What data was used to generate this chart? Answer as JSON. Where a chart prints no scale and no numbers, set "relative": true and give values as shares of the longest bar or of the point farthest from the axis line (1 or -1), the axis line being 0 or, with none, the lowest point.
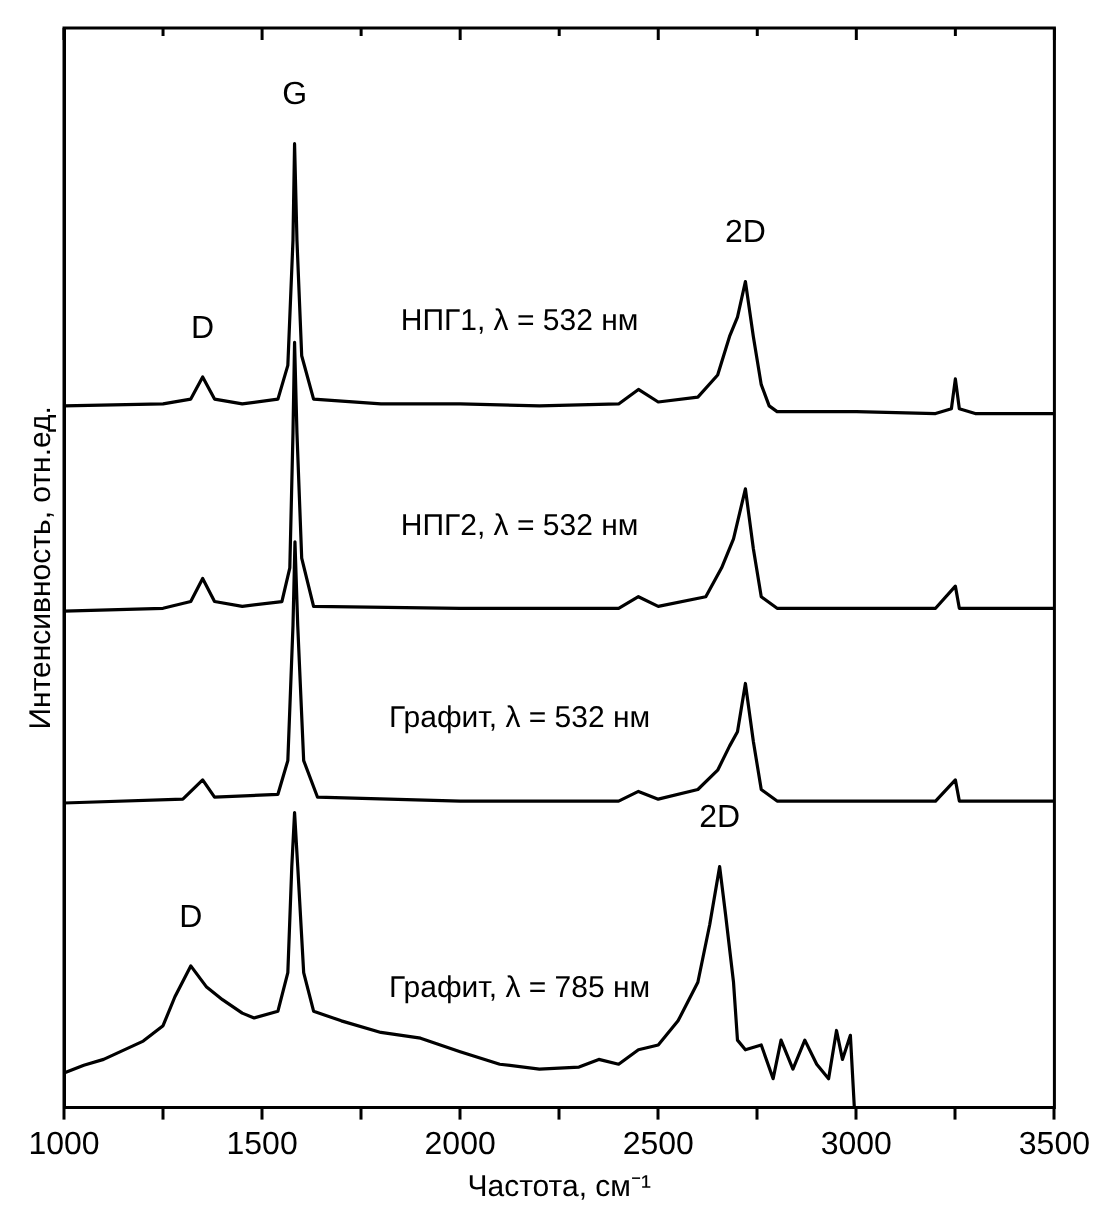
{
  "chart_data": {
    "type": "line",
    "relative": true,
    "xlabel": "Частота, см⁻¹",
    "ylabel": "Интенсивность, отн.ед.",
    "xlim": [
      1000,
      3500
    ],
    "xticks": [
      1000,
      {
        "value": 1250,
        "label": null
      },
      1500,
      {
        "value": 1750,
        "label": null
      },
      2000,
      {
        "value": 2250,
        "label": null
      },
      2500,
      {
        "value": 2750,
        "label": null
      },
      3000,
      {
        "value": 3250,
        "label": null
      },
      3500
    ],
    "grid": false,
    "legend": false,
    "marker": "none",
    "line_style": "solid",
    "series": [
      {
        "name": "НПГ1, λ = 532 нм",
        "color": "#000000",
        "x": [
          1000,
          1250,
          1320,
          1350,
          1380,
          1450,
          1540,
          1565,
          1578,
          1582,
          1588,
          1600,
          1630,
          1800,
          2000,
          2200,
          2400,
          2450,
          2500,
          2600,
          2650,
          2680,
          2700,
          2720,
          2740,
          2760,
          2780,
          2800,
          3000,
          3200,
          3240,
          3250,
          3260,
          3300,
          3500
        ],
        "values": [
          0.728,
          0.73,
          0.735,
          0.758,
          0.735,
          0.73,
          0.735,
          0.77,
          0.9,
          1.0,
          0.9,
          0.78,
          0.735,
          0.73,
          0.73,
          0.728,
          0.73,
          0.745,
          0.732,
          0.737,
          0.76,
          0.8,
          0.82,
          0.857,
          0.8,
          0.75,
          0.728,
          0.722,
          0.722,
          0.72,
          0.725,
          0.756,
          0.725,
          0.72,
          0.72
        ]
      },
      {
        "name": "НПГ2, λ = 532 нм",
        "color": "#000000",
        "x": [
          1000,
          1250,
          1320,
          1350,
          1380,
          1450,
          1550,
          1570,
          1578,
          1582,
          1588,
          1600,
          1630,
          2000,
          2400,
          2450,
          2500,
          2620,
          2660,
          2690,
          2720,
          2740,
          2760,
          2800,
          3200,
          3250,
          3260,
          3500
        ],
        "values": [
          0.515,
          0.518,
          0.525,
          0.549,
          0.525,
          0.52,
          0.525,
          0.56,
          0.7,
          0.794,
          0.7,
          0.57,
          0.52,
          0.518,
          0.518,
          0.53,
          0.52,
          0.53,
          0.56,
          0.59,
          0.642,
          0.58,
          0.53,
          0.518,
          0.518,
          0.541,
          0.518,
          0.518
        ]
      },
      {
        "name": "Графит, λ = 532 нм",
        "color": "#000000",
        "x": [
          1000,
          1300,
          1350,
          1380,
          1540,
          1565,
          1578,
          1583,
          1590,
          1605,
          1640,
          2000,
          2400,
          2450,
          2500,
          2600,
          2650,
          2680,
          2700,
          2720,
          2740,
          2760,
          2800,
          3200,
          3250,
          3260,
          3500
        ],
        "values": [
          0.316,
          0.32,
          0.34,
          0.322,
          0.325,
          0.36,
          0.5,
          0.587,
          0.5,
          0.36,
          0.322,
          0.318,
          0.318,
          0.328,
          0.32,
          0.33,
          0.35,
          0.375,
          0.39,
          0.44,
          0.38,
          0.33,
          0.318,
          0.318,
          0.34,
          0.318,
          0.318
        ]
      },
      {
        "name": "Графит, λ = 785 нм",
        "color": "#000000",
        "x": [
          1000,
          1050,
          1100,
          1200,
          1250,
          1280,
          1320,
          1360,
          1400,
          1450,
          1480,
          1540,
          1565,
          1575,
          1582,
          1590,
          1605,
          1630,
          1700,
          1800,
          1900,
          2000,
          2100,
          2200,
          2300,
          2350,
          2400,
          2450,
          2500,
          2550,
          2600,
          2630,
          2655,
          2670,
          2690,
          2700,
          2720,
          2760,
          2790,
          2810,
          2840,
          2870,
          2900,
          2930,
          2950,
          2965,
          2985,
          2995
        ],
        "values": [
          0.036,
          0.044,
          0.05,
          0.069,
          0.085,
          0.115,
          0.147,
          0.125,
          0.112,
          0.098,
          0.093,
          0.1,
          0.14,
          0.25,
          0.306,
          0.25,
          0.14,
          0.1,
          0.09,
          0.078,
          0.072,
          0.058,
          0.045,
          0.04,
          0.042,
          0.05,
          0.045,
          0.06,
          0.065,
          0.09,
          0.13,
          0.19,
          0.25,
          0.2,
          0.13,
          0.07,
          0.06,
          0.065,
          0.03,
          0.07,
          0.04,
          0.07,
          0.045,
          0.03,
          0.08,
          0.05,
          0.075,
          0.0
        ]
      }
    ],
    "annotations": [
      {
        "text": "D",
        "x": 1350,
        "y": 0.758
      },
      {
        "text": "G",
        "x": 1582,
        "y": 1.0
      },
      {
        "text": "2D",
        "x": 2720,
        "y": 0.857
      },
      {
        "text": "D",
        "x": 1320,
        "y": 0.147
      },
      {
        "text": "2D",
        "x": 2655,
        "y": 0.25
      }
    ]
  }
}
